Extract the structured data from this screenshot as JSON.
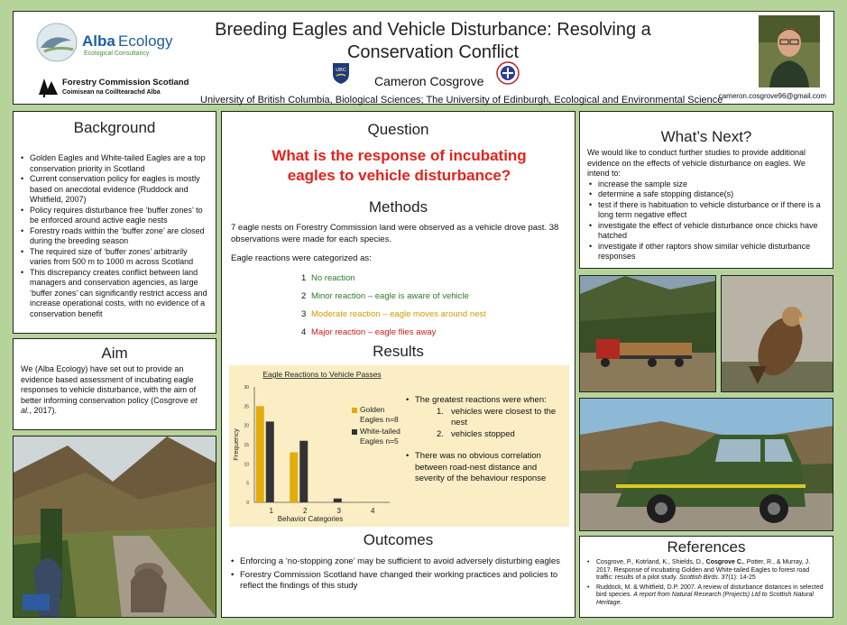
{
  "header": {
    "title_line1": "Breeding Eagles and Vehicle Disturbance: Resolving a",
    "title_line2": "Conservation Conflict",
    "author": "Cameron Cosgrove",
    "affiliation": "University of British Columbia, Biological Sciences; The University of Edinburgh, Ecological and Environmental Science",
    "email": "cameron.cosgrove96@gmail.com",
    "alba_logo_main": "Alba",
    "alba_logo_accent": "Ecology",
    "alba_logo_sub": "Ecological Consultancy",
    "fc_logo_line1": "Forestry Commission Scotland",
    "fc_logo_line2": "Coimisean na Coilltearachd Alba",
    "ubc_crest": "UBC"
  },
  "background": {
    "heading": "Background",
    "items": [
      "Golden Eagles and White-tailed Eagles are a top conservation priority in Scotland",
      "Current conservation policy for eagles is mostly based on anecdotal evidence (Ruddock and Whitfield, 2007)",
      "Policy requires disturbance free ‘buffer zones’ to be enforced around active eagle nests",
      "Forestry roads within the ‘buffer zone’ are closed during the breeding season",
      "The required size of ‘buffer zones’ arbitrarily varies from 500 m to 1000 m across Scotland",
      "This discrepancy creates conflict between land managers and conservation agencies, as large ‘buffer zones’ can significantly restrict access and increase operational costs, with no evidence of a conservation benefit"
    ]
  },
  "aim": {
    "heading": "Aim",
    "text_a": "We (Alba Ecology) have set out to provide an evidence based assessment of incubating eagle responses to vehicle disturbance, with the aim of better informing conservation policy (Cosgrove ",
    "text_em": "et al.",
    "text_b": ", 2017)."
  },
  "question": {
    "heading": "Question",
    "text": "What is the response of incubating eagles to vehicle disturbance?"
  },
  "methods": {
    "heading": "Methods",
    "intro": "7 eagle nests on Forestry Commission land were observed as a vehicle drove past. 38 observations were made for each species.",
    "categorized": "Eagle reactions were categorized as:",
    "categories": [
      {
        "num": "1",
        "label": "No reaction",
        "color": "#2d7a2d"
      },
      {
        "num": "2",
        "label": "Minor reaction – eagle is aware of vehicle",
        "color": "#2d7a2d"
      },
      {
        "num": "3",
        "label": "Moderate reaction – eagle moves around nest",
        "color": "#d49a00"
      },
      {
        "num": "4",
        "label": "Major reaction – eagle flies away",
        "color": "#cc1a1a"
      }
    ]
  },
  "results": {
    "heading": "Results",
    "bullet1": "The greatest reactions were when:",
    "sub1": "vehicles were closest to the nest",
    "sub2": "vehicles stopped",
    "bullet2": "There was no obvious correlation between road-nest distance and severity of the behaviour response"
  },
  "chart_data": {
    "type": "bar",
    "title": "Eagle Reactions to Vehicle Passes",
    "xlabel": "Behavior Categories",
    "ylabel": "Frequency",
    "categories": [
      "1",
      "2",
      "3",
      "4"
    ],
    "ylim": [
      0,
      30
    ],
    "yticks": [
      "0",
      "5",
      "10",
      "15",
      "20",
      "25",
      "30"
    ],
    "series": [
      {
        "name": "Golden Eagles n=8",
        "values": [
          25,
          13,
          0,
          0
        ],
        "color": "#e2ac0a"
      },
      {
        "name": "White-tailed Eagles n=5",
        "values": [
          21,
          16,
          1,
          0
        ],
        "color": "#333333"
      }
    ],
    "legend": "right",
    "grid": false
  },
  "outcomes": {
    "heading": "Outcomes",
    "items": [
      "Enforcing a ‘no-stopping zone’ may be sufficient to avoid adversely disturbing eagles",
      "Forestry Commission Scotland have changed their working practices and policies to reflect the findings of this study"
    ]
  },
  "next": {
    "heading": "What’s Next?",
    "intro": "We would like to conduct further studies to provide additional evidence on the effects of vehicle disturbance on eagles. We intend to:",
    "items": [
      "increase the sample size",
      "determine a safe stopping distance(s)",
      "test if there is habituation to vehicle disturbance or if there is a long term negative effect",
      "investigate the effect of vehicle disturbance once chicks have hatched",
      "investigate if other raptors show similar vehicle disturbance responses"
    ]
  },
  "references": {
    "heading": "References",
    "ref1_a": "Cosgrove, P., Kotrland, K., Shields, D., ",
    "ref1_b": "Cosgrove C.",
    "ref1_c": ", Potter, R., & Murray, J. 2017. Response of incubating Golden and White-tailed Eagles to forest road traffic: results of a pilot study. ",
    "ref1_d": "Scottish Birds",
    "ref1_e": ". 37(1): 14-25",
    "ref2_a": "Ruddock, M. & Whitfield, D.P. 2007. A review of disturbance distances in selected bird species. ",
    "ref2_b": "A report from Natural Research (Projects) Ltd to Scottish Natural Heritage."
  }
}
